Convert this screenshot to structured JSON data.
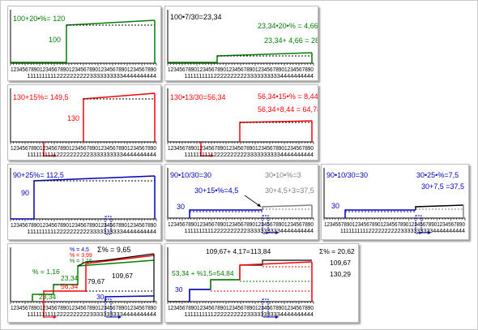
{
  "axis_row1": "12345678901234567890123456789012345678901234567890",
  "axis_row2": "          1111111111222222222233333333334444444444",
  "panels": {
    "p1": {
      "title": "100+20•%= 120",
      "base": "100"
    },
    "p2": {
      "title": "100•7/30=23,34",
      "pct": "23,34•20•% =  4,66",
      "sum": "23,34+ 4,66 = 28"
    },
    "p3": {
      "title": "130+15%= 149,5",
      "base": "130"
    },
    "p4": {
      "title": "130•13/30=56,34",
      "pct": "56,34•15•% = 8,44",
      "sum": "56,34+8,44 = 64,78"
    },
    "p5": {
      "title": "90+25%= 112,5",
      "base": "90"
    },
    "p6": {
      "title": "90•10/30=30",
      "gray1": "30•10•%=3",
      "gray2": "30+4,5+3=37,5",
      "blue1": "30+15•%=4,5",
      "base": "30"
    },
    "p7": {
      "title": "90•10/30=30",
      "eq1": "30•25•%=7,5",
      "eq2": "30+7,5 =37,5",
      "base": "30"
    },
    "p8": {
      "leg1": "% = 4,5",
      "leg2": "% = 3,99",
      "leg3": "% = 1,16",
      "sumpct": "Σ% = 9,65",
      "g_pct": "% = 1,16",
      "v1": "23,34",
      "v2": "56,34",
      "v3": "79,67",
      "v4": "109,67",
      "v5": "23,34",
      "v6": "30"
    },
    "p9": {
      "top": "109,67+ 4,17=113,84",
      "sumpct": "Σ% = 20,62",
      "r1": "109,67",
      "r2": "130,29",
      "green": "53,34 + %1,5=54,84",
      "base": "30"
    }
  },
  "colors": {
    "green": "#008000",
    "red": "#ff0000",
    "blue": "#0000c0",
    "gray": "#808080",
    "black": "#000000"
  }
}
